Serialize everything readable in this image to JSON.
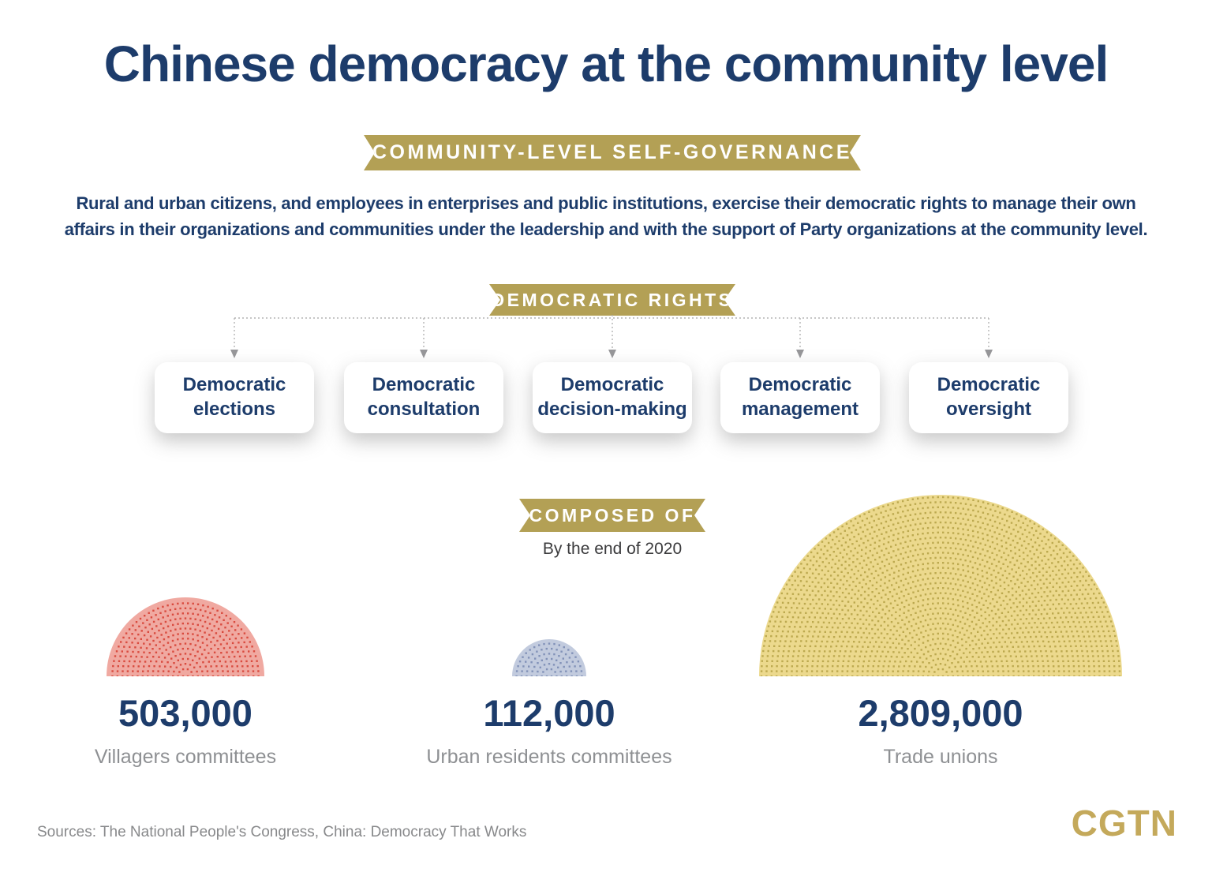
{
  "title": "Chinese democracy at the community level",
  "banners": {
    "self_governance": "COMMUNITY-LEVEL SELF-GOVERNANCE",
    "democratic_rights": "DEMOCRATIC RIGHTS",
    "composed_of": "COMPOSED OF"
  },
  "intro": {
    "line1": "Rural and urban citizens, and employees in enterprises and public institutions, exercise their democratic rights to manage their own",
    "line2": "affairs in their organizations and communities under the leadership and with the support of Party organizations at the community level."
  },
  "rights": [
    {
      "label": "Democratic elections"
    },
    {
      "label": "Democratic consultation"
    },
    {
      "label": "Democratic decision-making"
    },
    {
      "label": "Democratic management"
    },
    {
      "label": "Democratic oversight"
    }
  ],
  "composed": {
    "note": "By the end of 2020"
  },
  "chart_data": {
    "type": "proportional_area_dot_semicircles",
    "title": "COMPOSED OF",
    "subtitle": "By the end of 2020",
    "legend_position": "below-each-shape",
    "items": [
      {
        "label": "Villagers committees",
        "value": 503000,
        "display_value": "503,000",
        "fill_color": "#f0a9a1",
        "dot_color": "#d94b3f",
        "radius_px": 100
      },
      {
        "label": "Urban residents committees",
        "value": 112000,
        "display_value": "112,000",
        "fill_color": "#c2cbde",
        "dot_color": "#8292b8",
        "radius_px": 47
      },
      {
        "label": "Trade unions",
        "value": 2809000,
        "display_value": "2,809,000",
        "fill_color": "#ecd98d",
        "dot_color": "#bca94f",
        "radius_px": 230
      }
    ]
  },
  "footer": {
    "sources": "Sources: The National People's Congress, China: Democracy That Works",
    "logo": "CGTN"
  },
  "colors": {
    "navy": "#1d3c6b",
    "gold": "#b3a055",
    "logo_gold": "#c4a95b",
    "label_gray": "#8e9093",
    "connector_gray": "#b4b4b4",
    "arrow_gray": "#97979a"
  }
}
